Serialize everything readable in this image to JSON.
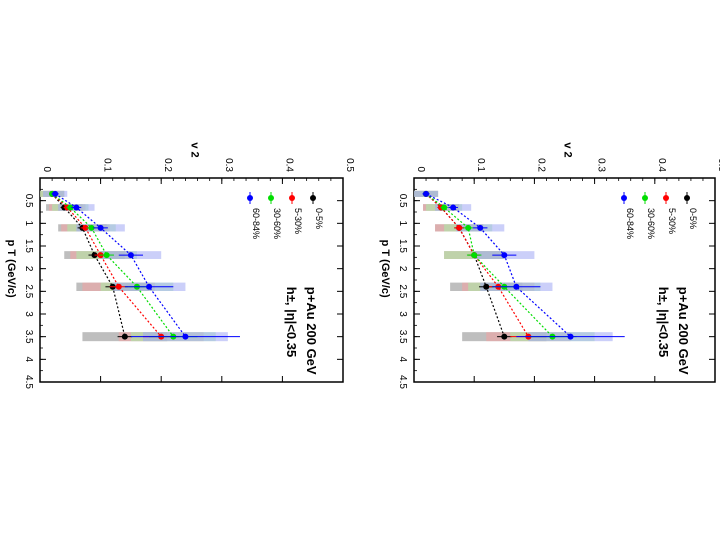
{
  "chart_data": [
    {
      "type": "scatter",
      "title": "p+Au 200 GeV",
      "subtitle": "h±, |η|<0.35",
      "xlabel": "p_T (GeV/c)",
      "ylabel": "v_2",
      "xlim": [
        0,
        4.5
      ],
      "ylim": [
        0,
        0.5
      ],
      "xticks": [
        "0.5",
        "1",
        "1.5",
        "2",
        "2.5",
        "3",
        "3.5",
        "4",
        "4.5"
      ],
      "yticks": [
        "0",
        "0.1",
        "0.2",
        "0.3",
        "0.4",
        "0.5"
      ],
      "legend_position": "top-left",
      "series": [
        {
          "name": "0-5%",
          "color": "#000000",
          "x": [
            0.35,
            0.65,
            1.1,
            1.7,
            2.4,
            3.5
          ],
          "y": [
            0.02,
            0.04,
            0.07,
            0.09,
            0.12,
            0.14
          ],
          "err": [
            0.005,
            0.006,
            0.008,
            0.01,
            0.012,
            0.012
          ]
        },
        {
          "name": "5-30%",
          "color": "#ff0000",
          "x": [
            0.35,
            0.65,
            1.1,
            1.7,
            2.4,
            3.5
          ],
          "y": [
            0.02,
            0.045,
            0.075,
            0.1,
            0.13,
            0.2
          ],
          "err": [
            0.005,
            0.006,
            0.008,
            0.01,
            0.015,
            0.03
          ]
        },
        {
          "name": "30-60%",
          "color": "#00dd00",
          "x": [
            0.35,
            0.65,
            1.1,
            1.7,
            2.4,
            3.5
          ],
          "y": [
            0.02,
            0.05,
            0.085,
            0.11,
            0.16,
            0.22
          ],
          "err": [
            0.005,
            0.006,
            0.008,
            0.012,
            0.02,
            0.04
          ]
        },
        {
          "name": "60-84%",
          "color": "#0000ff",
          "x": [
            0.35,
            0.65,
            1.1,
            1.7,
            2.4,
            3.5
          ],
          "y": [
            0.025,
            0.06,
            0.1,
            0.15,
            0.18,
            0.24
          ],
          "err": [
            0.006,
            0.008,
            0.012,
            0.02,
            0.04,
            0.09
          ]
        }
      ]
    },
    {
      "type": "scatter",
      "title": "p+Au 200 GeV",
      "subtitle": "h±, |η|<0.35",
      "xlabel": "p_T (GeV/c)",
      "ylabel": "v_2",
      "xlim": [
        0,
        4.5
      ],
      "ylim": [
        0,
        0.5
      ],
      "xticks": [
        "0.5",
        "1",
        "1.5",
        "2",
        "2.5",
        "3",
        "3.5",
        "4",
        "4.5"
      ],
      "yticks": [
        "0",
        "0.1",
        "0.2",
        "0.3",
        "0.4",
        "0.5"
      ],
      "legend_position": "top-left",
      "series": [
        {
          "name": "0-5%",
          "color": "#000000",
          "x": [
            0.35,
            0.65,
            1.1,
            1.7,
            2.4,
            3.5
          ],
          "y": [
            0.02,
            0.045,
            0.075,
            0.1,
            0.12,
            0.15
          ],
          "err": [
            0.005,
            0.006,
            0.008,
            0.01,
            0.012,
            0.012
          ]
        },
        {
          "name": "5-30%",
          "color": "#ff0000",
          "x": [
            0.35,
            0.65,
            1.1,
            1.7,
            2.4,
            3.5
          ],
          "y": [
            0.02,
            0.045,
            0.075,
            0.1,
            0.14,
            0.19
          ],
          "err": [
            0.005,
            0.006,
            0.008,
            0.01,
            0.015,
            0.03
          ]
        },
        {
          "name": "30-60%",
          "color": "#00dd00",
          "x": [
            0.35,
            0.65,
            1.1,
            1.7,
            2.4,
            3.5
          ],
          "y": [
            0.02,
            0.05,
            0.09,
            0.1,
            0.15,
            0.23
          ],
          "err": [
            0.005,
            0.006,
            0.008,
            0.012,
            0.02,
            0.04
          ]
        },
        {
          "name": "60-84%",
          "color": "#0000ff",
          "x": [
            0.35,
            0.65,
            1.1,
            1.7,
            2.4,
            3.5
          ],
          "y": [
            0.02,
            0.065,
            0.11,
            0.15,
            0.17,
            0.26
          ],
          "err": [
            0.006,
            0.008,
            0.012,
            0.02,
            0.04,
            0.09
          ]
        }
      ]
    }
  ]
}
